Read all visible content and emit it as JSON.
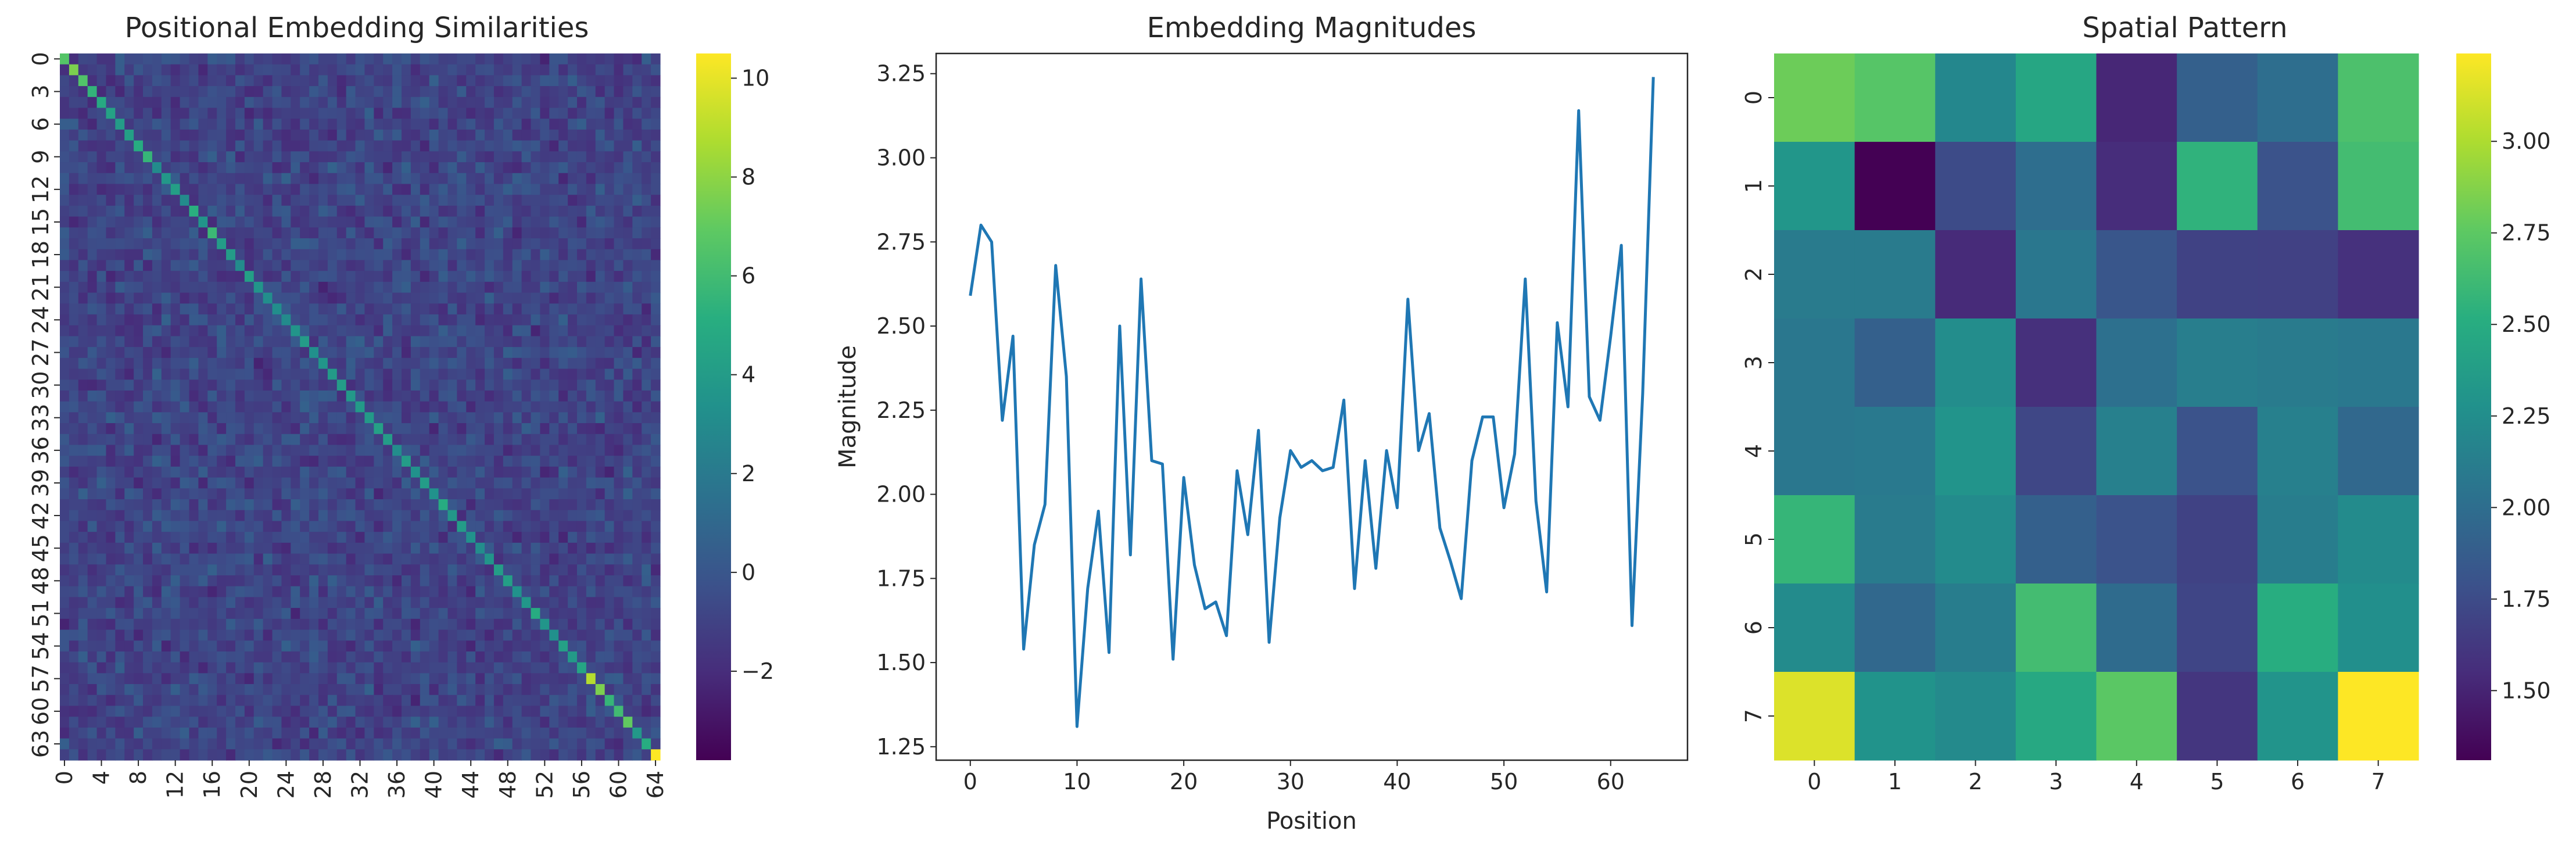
{
  "chart_data": [
    {
      "type": "heatmap",
      "title": "Positional Embedding Similarities",
      "xlabel": "",
      "ylabel": "",
      "rows": 65,
      "cols": 65,
      "x_tick_labels": [
        "0",
        "4",
        "8",
        "12",
        "16",
        "20",
        "24",
        "28",
        "32",
        "36",
        "40",
        "44",
        "48",
        "52",
        "56",
        "60",
        "64"
      ],
      "y_tick_labels": [
        "0",
        "3",
        "6",
        "9",
        "12",
        "15",
        "18",
        "21",
        "24",
        "27",
        "30",
        "33",
        "36",
        "39",
        "42",
        "45",
        "48",
        "51",
        "54",
        "57",
        "60",
        "63"
      ],
      "colormap": "viridis",
      "vmin": -3.8,
      "vmax": 10.5,
      "colorbar_ticks": [
        -2,
        0,
        2,
        4,
        6,
        8,
        10
      ],
      "colorbar_tick_labels": [
        "−2",
        "0",
        "2",
        "4",
        "6",
        "8",
        "10"
      ],
      "diagonal_values": [
        6.6,
        7.6,
        6.5,
        5.5,
        4.8,
        4.4,
        4.0,
        4.2,
        5.0,
        5.6,
        3.0,
        3.8,
        4.2,
        3.0,
        5.2,
        3.6,
        5.8,
        4.0,
        4.0,
        3.0,
        4.2,
        3.6,
        3.2,
        3.2,
        3.0,
        3.6,
        4.0,
        3.3,
        3.6,
        3.9,
        4.0,
        3.8,
        3.9,
        3.9,
        4.3,
        4.0,
        3.1,
        4.0,
        3.4,
        4.0,
        3.4,
        5.0,
        3.8,
        4.0,
        3.4,
        3.1,
        3.6,
        4.1,
        4.2,
        3.4,
        3.7,
        5.0,
        3.6,
        3.3,
        4.3,
        3.9,
        4.6,
        8.9,
        7.6,
        5.6,
        6.0,
        7.0,
        3.8,
        5.0,
        10.5
      ],
      "off_diagonal_range": [
        -3.8,
        3.5
      ]
    },
    {
      "type": "line",
      "title": "Embedding Magnitudes",
      "xlabel": "Position",
      "ylabel": "Magnitude",
      "xlim": [
        -3.2,
        67.2
      ],
      "ylim": [
        1.21,
        3.31
      ],
      "x_ticks": [
        0,
        10,
        20,
        30,
        40,
        50,
        60
      ],
      "y_ticks": [
        1.25,
        1.5,
        1.75,
        2.0,
        2.25,
        2.5,
        2.75,
        3.0,
        3.25
      ],
      "y_tick_labels": [
        "1.25",
        "1.50",
        "1.75",
        "2.00",
        "2.25",
        "2.50",
        "2.75",
        "3.00",
        "3.25"
      ],
      "color": "#1f77b4",
      "x": [
        0,
        1,
        2,
        3,
        4,
        5,
        6,
        7,
        8,
        9,
        10,
        11,
        12,
        13,
        14,
        15,
        16,
        17,
        18,
        19,
        20,
        21,
        22,
        23,
        24,
        25,
        26,
        27,
        28,
        29,
        30,
        31,
        32,
        33,
        34,
        35,
        36,
        37,
        38,
        39,
        40,
        41,
        42,
        43,
        44,
        45,
        46,
        47,
        48,
        49,
        50,
        51,
        52,
        53,
        54,
        55,
        56,
        57,
        58,
        59,
        60,
        61,
        62,
        63,
        64
      ],
      "y": [
        2.59,
        2.8,
        2.75,
        2.22,
        2.47,
        1.54,
        1.85,
        1.97,
        2.68,
        2.35,
        1.31,
        1.72,
        1.95,
        1.53,
        2.5,
        1.82,
        2.64,
        2.1,
        2.09,
        1.51,
        2.05,
        1.79,
        1.66,
        1.68,
        1.58,
        2.07,
        1.88,
        2.19,
        1.56,
        1.93,
        2.13,
        2.08,
        2.1,
        2.07,
        2.08,
        2.28,
        1.72,
        2.1,
        1.78,
        2.13,
        1.96,
        2.58,
        2.13,
        2.24,
        1.9,
        1.8,
        1.69,
        2.1,
        2.23,
        2.23,
        1.96,
        2.12,
        2.64,
        1.98,
        1.71,
        2.51,
        2.26,
        3.14,
        2.29,
        2.22,
        2.47,
        2.74,
        1.61,
        2.3,
        3.24
      ]
    },
    {
      "type": "heatmap",
      "title": "Spatial Pattern",
      "xlabel": "",
      "ylabel": "",
      "x_tick_labels": [
        "0",
        "1",
        "2",
        "3",
        "4",
        "5",
        "6",
        "7"
      ],
      "y_tick_labels": [
        "0",
        "1",
        "2",
        "3",
        "4",
        "5",
        "6",
        "7"
      ],
      "colormap": "viridis",
      "vmin": 1.31,
      "vmax": 3.24,
      "colorbar_ticks": [
        1.5,
        1.75,
        2.0,
        2.25,
        2.5,
        2.75,
        3.0
      ],
      "colorbar_tick_labels": [
        "1.50",
        "1.75",
        "2.00",
        "2.25",
        "2.50",
        "2.75",
        "3.00"
      ],
      "values": [
        [
          2.8,
          2.72,
          2.2,
          2.45,
          1.52,
          1.9,
          2.0,
          2.68
        ],
        [
          2.32,
          1.31,
          1.75,
          2.0,
          1.55,
          2.55,
          1.8,
          2.64
        ],
        [
          2.1,
          2.1,
          1.54,
          2.07,
          1.82,
          1.69,
          1.68,
          1.58
        ],
        [
          2.07,
          1.9,
          2.24,
          1.57,
          2.02,
          2.13,
          2.1,
          2.08
        ],
        [
          2.07,
          2.09,
          2.3,
          1.72,
          2.14,
          1.8,
          2.14,
          1.96
        ],
        [
          2.58,
          2.1,
          2.23,
          1.9,
          1.8,
          1.69,
          2.12,
          2.23
        ],
        [
          2.23,
          1.96,
          2.12,
          2.64,
          1.98,
          1.71,
          2.51,
          2.26
        ],
        [
          3.14,
          2.29,
          2.22,
          2.47,
          2.74,
          1.61,
          2.3,
          3.24
        ]
      ]
    }
  ]
}
